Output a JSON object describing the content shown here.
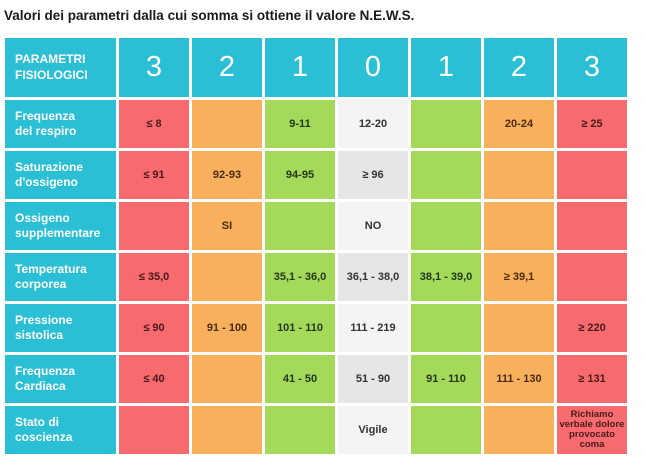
{
  "title": "Valori dei parametri dalla cui somma si ottiene il valore N.E.W.S.",
  "header": {
    "label": "PARAMETRI\nFISIOLOGICI",
    "scores": [
      "3",
      "2",
      "1",
      "0",
      "1",
      "2",
      "3"
    ]
  },
  "colors": {
    "header": "#2bbfd6",
    "score_3": "#f76b6f",
    "score_2": "#f9b05c",
    "score_1": "#a5d95a",
    "score_0_light": "#f4f4f4",
    "score_0_dark": "#e6e6e6"
  },
  "rows": [
    {
      "name": "Frequenza\ndel respiro",
      "values": [
        "≤ 8",
        "",
        "9-11",
        "12-20",
        "",
        "20-24",
        "≥ 25"
      ]
    },
    {
      "name": "Saturazione\nd'ossigeno",
      "values": [
        "≤ 91",
        "92-93",
        "94-95",
        "≥ 96",
        "",
        "",
        ""
      ]
    },
    {
      "name": "Ossigeno\nsupplementare",
      "values": [
        "",
        "SI",
        "",
        "NO",
        "",
        "",
        ""
      ]
    },
    {
      "name": "Temperatura\ncorporea",
      "values": [
        "≤ 35,0",
        "",
        "35,1 - 36,0",
        "36,1 - 38,0",
        "38,1 - 39,0",
        "≥ 39,1",
        ""
      ]
    },
    {
      "name": "Pressione\nsistolica",
      "values": [
        "≤ 90",
        "91 - 100",
        "101 - 110",
        "111 - 219",
        "",
        "",
        "≥ 220"
      ]
    },
    {
      "name": "Frequenza\nCardiaca",
      "values": [
        "≤ 40",
        "",
        "41 - 50",
        "51 - 90",
        "91 - 110",
        "111 - 130",
        "≥ 131"
      ]
    },
    {
      "name": "Stato di\ncoscienza",
      "values": [
        "",
        "",
        "",
        "Vigile",
        "",
        "",
        "Richiamo\nverbale dolore\nprovocato\ncoma"
      ]
    }
  ]
}
